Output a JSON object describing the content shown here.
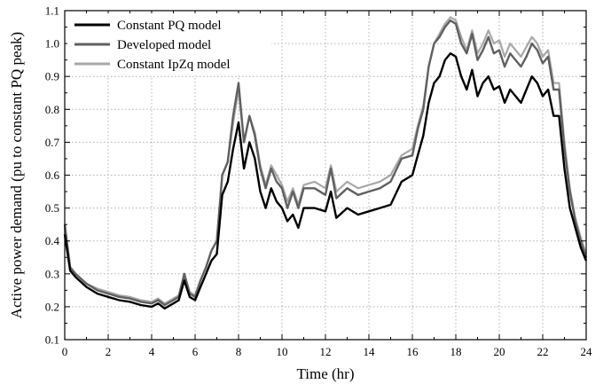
{
  "chart_data": {
    "type": "line",
    "xlabel": "Time (hr)",
    "ylabel": "Active power demand (pu to constant PQ peak)",
    "xlim": [
      0,
      24
    ],
    "ylim": [
      0.1,
      1.1
    ],
    "xticks": [
      0,
      2,
      4,
      6,
      8,
      10,
      12,
      14,
      16,
      18,
      20,
      22,
      24
    ],
    "yticks": [
      0.1,
      0.2,
      0.3,
      0.4,
      0.5,
      0.6,
      0.7,
      0.8,
      0.9,
      1.0,
      1.1
    ],
    "ytick_labels": [
      "0.1",
      "0.2",
      "0.3",
      "0.4",
      "0.5",
      "0.6",
      "0.7",
      "0.8",
      "0.9",
      "1.0",
      "1.1"
    ],
    "grid": true,
    "legend_position": "top-left",
    "x": [
      0,
      0.25,
      0.5,
      1,
      1.5,
      2,
      2.5,
      3,
      3.5,
      4,
      4.3,
      4.6,
      5,
      5.25,
      5.5,
      5.75,
      6,
      6.25,
      6.5,
      6.75,
      7,
      7.25,
      7.5,
      7.75,
      8,
      8.25,
      8.5,
      8.75,
      9,
      9.25,
      9.5,
      9.75,
      10,
      10.25,
      10.5,
      10.75,
      11,
      11.5,
      12,
      12.25,
      12.5,
      13,
      13.5,
      14,
      14.5,
      15,
      15.5,
      16,
      16.25,
      16.5,
      16.75,
      17,
      17.25,
      17.5,
      17.75,
      18,
      18.25,
      18.5,
      18.75,
      19,
      19.25,
      19.5,
      19.75,
      20,
      20.25,
      20.5,
      20.75,
      21,
      21.25,
      21.5,
      21.75,
      22,
      22.25,
      22.5,
      22.75,
      23,
      23.25,
      23.5,
      23.75,
      24
    ],
    "series": [
      {
        "name": "Constant PQ model",
        "color": "#000000",
        "values": [
          0.42,
          0.31,
          0.29,
          0.26,
          0.24,
          0.23,
          0.22,
          0.215,
          0.205,
          0.2,
          0.21,
          0.195,
          0.21,
          0.22,
          0.28,
          0.23,
          0.22,
          0.26,
          0.3,
          0.34,
          0.36,
          0.54,
          0.58,
          0.68,
          0.76,
          0.62,
          0.7,
          0.65,
          0.55,
          0.5,
          0.56,
          0.52,
          0.5,
          0.46,
          0.48,
          0.44,
          0.5,
          0.5,
          0.49,
          0.55,
          0.47,
          0.5,
          0.48,
          0.49,
          0.5,
          0.51,
          0.58,
          0.6,
          0.66,
          0.72,
          0.82,
          0.88,
          0.9,
          0.95,
          0.97,
          0.96,
          0.9,
          0.86,
          0.92,
          0.84,
          0.88,
          0.9,
          0.86,
          0.87,
          0.82,
          0.86,
          0.84,
          0.82,
          0.86,
          0.9,
          0.88,
          0.84,
          0.86,
          0.78,
          0.78,
          0.62,
          0.5,
          0.44,
          0.38,
          0.34
        ]
      },
      {
        "name": "Developed model",
        "color": "#606060",
        "values": [
          0.45,
          0.32,
          0.3,
          0.27,
          0.25,
          0.24,
          0.23,
          0.225,
          0.215,
          0.21,
          0.22,
          0.205,
          0.22,
          0.23,
          0.3,
          0.24,
          0.23,
          0.28,
          0.32,
          0.37,
          0.4,
          0.6,
          0.64,
          0.78,
          0.88,
          0.7,
          0.78,
          0.72,
          0.62,
          0.56,
          0.62,
          0.58,
          0.56,
          0.5,
          0.55,
          0.5,
          0.56,
          0.56,
          0.54,
          0.62,
          0.53,
          0.56,
          0.54,
          0.55,
          0.56,
          0.58,
          0.65,
          0.66,
          0.74,
          0.8,
          0.93,
          1.0,
          1.02,
          1.05,
          1.07,
          1.06,
          1.0,
          0.97,
          1.03,
          0.95,
          0.98,
          1.02,
          0.97,
          0.98,
          0.93,
          0.97,
          0.95,
          0.93,
          0.96,
          1.0,
          0.98,
          0.94,
          0.96,
          0.86,
          0.86,
          0.68,
          0.55,
          0.46,
          0.4,
          0.35
        ]
      },
      {
        "name": "Constant IpZq model",
        "color": "#a8a8a8",
        "values": [
          0.44,
          0.32,
          0.3,
          0.27,
          0.255,
          0.245,
          0.235,
          0.23,
          0.22,
          0.215,
          0.225,
          0.21,
          0.225,
          0.235,
          0.3,
          0.245,
          0.235,
          0.28,
          0.32,
          0.37,
          0.4,
          0.6,
          0.64,
          0.76,
          0.86,
          0.7,
          0.78,
          0.73,
          0.63,
          0.57,
          0.63,
          0.6,
          0.57,
          0.52,
          0.56,
          0.51,
          0.57,
          0.58,
          0.56,
          0.63,
          0.55,
          0.58,
          0.56,
          0.57,
          0.58,
          0.6,
          0.66,
          0.68,
          0.75,
          0.81,
          0.93,
          1.0,
          1.03,
          1.06,
          1.08,
          1.07,
          1.02,
          0.98,
          1.04,
          0.97,
          1.0,
          1.04,
          1.0,
          1.01,
          0.96,
          1.0,
          0.98,
          0.96,
          0.99,
          1.02,
          1.0,
          0.96,
          0.98,
          0.88,
          0.88,
          0.7,
          0.56,
          0.47,
          0.41,
          0.36
        ]
      }
    ]
  }
}
